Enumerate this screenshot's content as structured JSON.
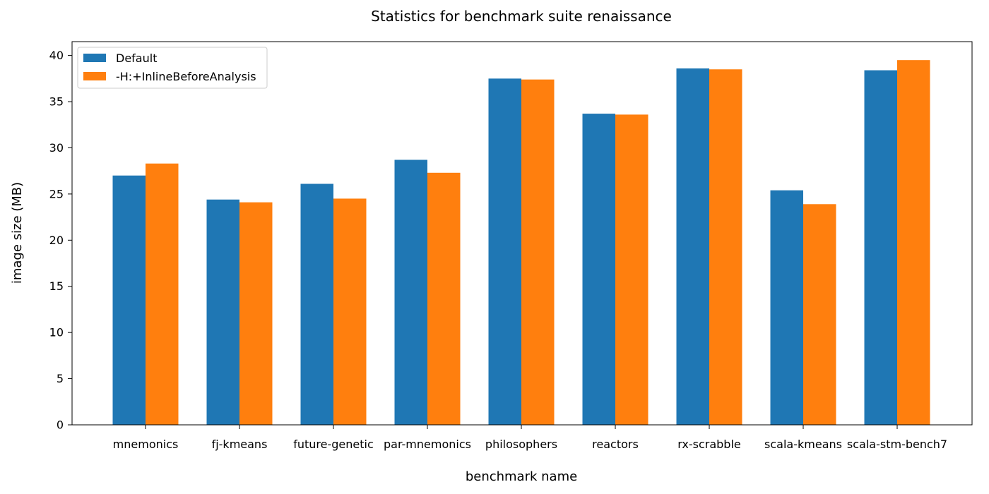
{
  "chart_data": {
    "type": "bar",
    "title": "Statistics for benchmark suite renaissance",
    "xlabel": "benchmark name",
    "ylabel": "image size (MB)",
    "categories": [
      "mnemonics",
      "fj-kmeans",
      "future-genetic",
      "par-mnemonics",
      "philosophers",
      "reactors",
      "rx-scrabble",
      "scala-kmeans",
      "scala-stm-bench7"
    ],
    "series": [
      {
        "name": "Default",
        "color": "#1f77b4",
        "values": [
          27.0,
          24.4,
          26.1,
          28.7,
          37.5,
          33.7,
          38.6,
          25.4,
          38.4
        ]
      },
      {
        "name": "-H:+InlineBeforeAnalysis",
        "color": "#ff7f0e",
        "values": [
          28.3,
          24.1,
          24.5,
          27.3,
          37.4,
          33.6,
          38.5,
          23.9,
          39.5
        ]
      }
    ],
    "ylim": [
      0,
      41.5
    ],
    "yticks": [
      0,
      5,
      10,
      15,
      20,
      25,
      30,
      35,
      40
    ],
    "grid": false,
    "legend_position": "top-left"
  }
}
